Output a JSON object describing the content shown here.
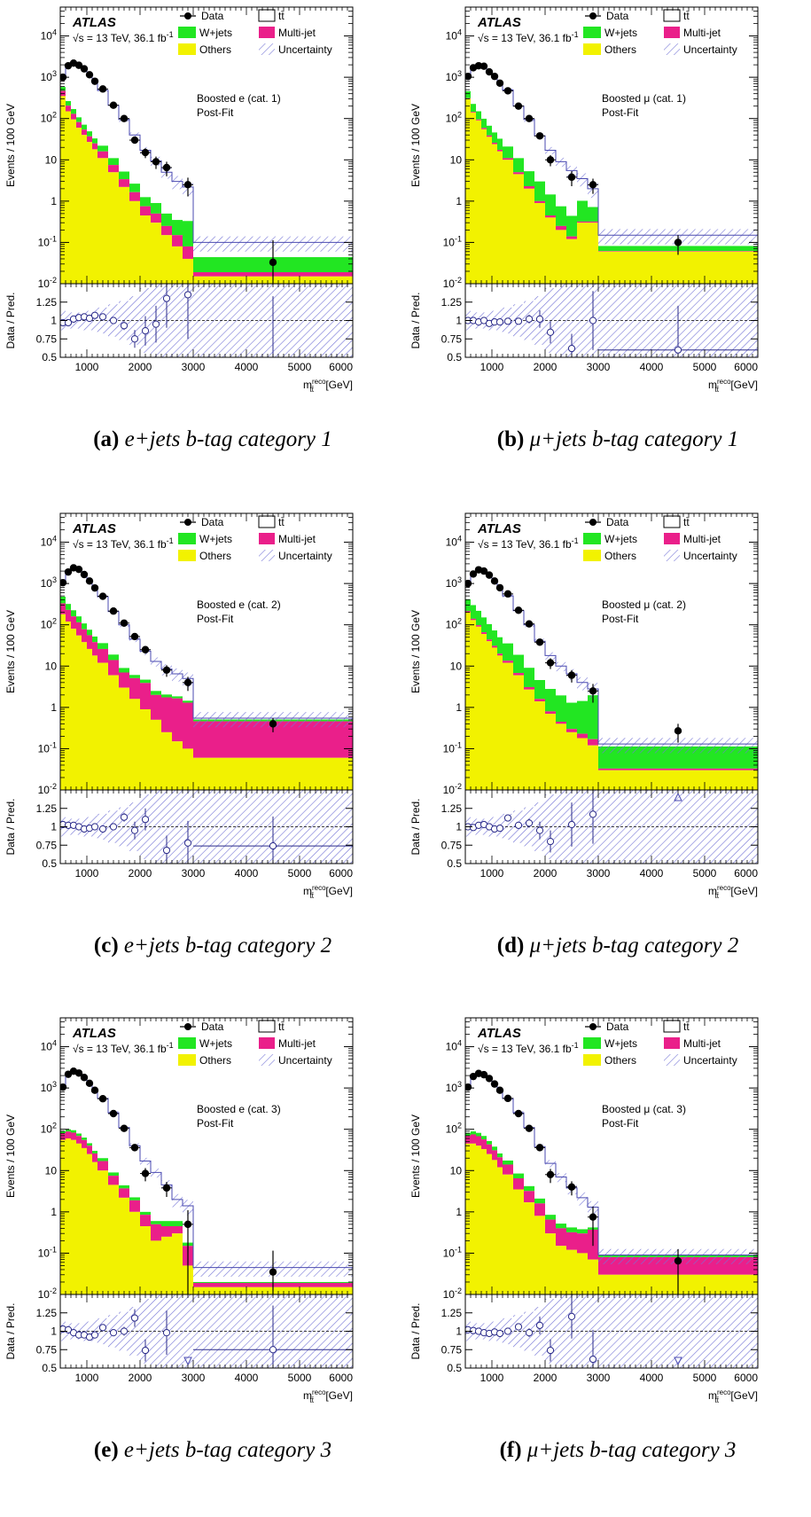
{
  "colors": {
    "wjets": "#22e622",
    "multijet": "#ea1f8a",
    "others": "#f2f200",
    "ttbar": "#ffffff",
    "data": "#000000",
    "uncertainty": "#6e6ed2"
  },
  "legend": {
    "data": "Data",
    "ttbar": "tt̄",
    "wjets": "W+jets",
    "multijet": "Multi-jet",
    "others": "Others",
    "uncertainty": "Uncertainty"
  },
  "atlas_label": "ATLAS",
  "energy_label": "√s = 13 TeV, 36.1 fb",
  "energy_sup": "-1",
  "postfit_label": "Post-Fit",
  "y_axis_label": "Events / 100 GeV",
  "ratio_axis_label": "Data / Pred.",
  "x_axis_label": "m",
  "x_axis_sup": "reco",
  "x_axis_sub": "tt̄",
  "x_axis_unit": "[GeV]",
  "chart_data": [
    {
      "type": "bar",
      "caption_letter": "(a)",
      "caption_text": "e+jets b-tag category 1",
      "region_label": "Boosted e (cat. 1)",
      "xlim": [
        500,
        6000
      ],
      "ylim": [
        0.01,
        50000
      ],
      "yscale": "log",
      "ratio_ylim": [
        0.5,
        1.5
      ],
      "ratio_ticks": [
        0.5,
        0.75,
        1,
        1.25
      ],
      "x_ticks": [
        1000,
        2000,
        3000,
        4000,
        5000,
        6000
      ],
      "bin_edges": [
        500,
        600,
        700,
        800,
        900,
        1000,
        1100,
        1200,
        1400,
        1600,
        1800,
        2000,
        2200,
        2400,
        2600,
        2800,
        3000,
        6000
      ],
      "others": [
        350,
        150,
        95,
        60,
        40,
        27,
        18,
        11,
        5,
        2.2,
        1.0,
        0.45,
        0.3,
        0.15,
        0.08,
        0.04,
        0.015
      ],
      "multijet": [
        120,
        55,
        35,
        22,
        14,
        10,
        7,
        5,
        2.5,
        1.2,
        0.65,
        0.3,
        0.2,
        0.1,
        0.07,
        0.04,
        0.004
      ],
      "wjets": [
        110,
        60,
        40,
        25,
        17,
        12,
        8,
        6,
        3.5,
        1.8,
        1.0,
        0.5,
        0.4,
        0.25,
        0.2,
        0.25,
        0.025
      ],
      "total": [
        1000,
        1850,
        2100,
        1850,
        1500,
        1100,
        750,
        480,
        210,
        95,
        40,
        17,
        9.5,
        5.0,
        3.0,
        2.2,
        0.1
      ],
      "unc_frac": [
        0.06,
        0.05,
        0.05,
        0.05,
        0.06,
        0.06,
        0.07,
        0.08,
        0.1,
        0.12,
        0.15,
        0.2,
        0.25,
        0.3,
        0.35,
        0.4,
        0.4
      ],
      "data": [
        1000,
        1900,
        2200,
        1950,
        1600,
        1150,
        800,
        520,
        210,
        100,
        30,
        15,
        9,
        6.5,
        0,
        2.5,
        0.033
      ],
      "data_err": [
        0,
        0,
        0,
        0,
        0,
        0,
        0,
        0,
        0,
        0,
        5,
        4,
        3,
        2.5,
        0,
        1.2,
        0.08
      ],
      "ratio": [
        0.97,
        0.97,
        1.02,
        1.04,
        1.05,
        1.03,
        1.07,
        1.05,
        1.0,
        0.93,
        0.75,
        0.86,
        0.95,
        1.3,
        null,
        1.35,
        0.33
      ],
      "ratio_err": [
        0.01,
        0.01,
        0.01,
        0.01,
        0.02,
        0.02,
        0.03,
        0.04,
        0.04,
        0.06,
        0.12,
        0.2,
        0.25,
        0.4,
        null,
        0.6,
        1.0
      ]
    },
    {
      "type": "bar",
      "caption_letter": "(b)",
      "caption_text": "μ+jets b-tag category 1",
      "region_label": "Boosted μ (cat. 1)",
      "xlim": [
        500,
        6000
      ],
      "ylim": [
        0.01,
        50000
      ],
      "yscale": "log",
      "ratio_ylim": [
        0.5,
        1.5
      ],
      "ratio_ticks": [
        0.5,
        0.75,
        1,
        1.25
      ],
      "x_ticks": [
        1000,
        2000,
        3000,
        4000,
        5000,
        6000
      ],
      "bin_edges": [
        500,
        600,
        700,
        800,
        900,
        1000,
        1100,
        1200,
        1400,
        1600,
        1800,
        2000,
        2200,
        2400,
        2600,
        2800,
        3000,
        6000
      ],
      "others": [
        300,
        140,
        90,
        55,
        36,
        24,
        16,
        10,
        4.5,
        2.0,
        0.9,
        0.4,
        0.2,
        0.12,
        0.3,
        0.3,
        0.06
      ],
      "multijet": [
        10,
        6,
        5,
        4,
        3,
        2,
        1.5,
        1,
        0.5,
        0.3,
        0.1,
        0.05,
        0.05,
        0.02,
        0.02,
        0.02,
        0.002
      ],
      "wjets": [
        150,
        80,
        55,
        40,
        28,
        20,
        15,
        10,
        6,
        3,
        2,
        1,
        0.5,
        0.3,
        0.7,
        0.4,
        0.02
      ],
      "total": [
        1100,
        1750,
        1950,
        1800,
        1400,
        1100,
        750,
        490,
        200,
        95,
        38,
        17,
        9,
        5.5,
        3.5,
        2.0,
        0.15
      ],
      "unc_frac": [
        0.06,
        0.05,
        0.05,
        0.05,
        0.06,
        0.06,
        0.07,
        0.08,
        0.1,
        0.12,
        0.15,
        0.2,
        0.25,
        0.3,
        0.35,
        0.4,
        0.4
      ],
      "data": [
        1050,
        1700,
        1900,
        1850,
        1350,
        1050,
        720,
        470,
        200,
        100,
        38,
        10,
        0,
        3.8,
        0,
        2.5,
        0.1
      ],
      "data_err": [
        0,
        0,
        0,
        0,
        0,
        0,
        0,
        0,
        0,
        0,
        6,
        3,
        0,
        1.5,
        0,
        1.0,
        0.05
      ],
      "ratio": [
        1.0,
        1.0,
        0.98,
        1.0,
        0.96,
        0.98,
        0.98,
        0.99,
        0.99,
        1.02,
        1.02,
        0.84,
        null,
        0.62,
        null,
        1.0,
        0.6
      ],
      "ratio_err": [
        0.01,
        0.01,
        0.01,
        0.01,
        0.02,
        0.02,
        0.03,
        0.04,
        0.04,
        0.06,
        0.12,
        0.15,
        null,
        0.2,
        null,
        0.4,
        0.6
      ]
    },
    {
      "type": "bar",
      "caption_letter": "(c)",
      "caption_text": "e+jets b-tag category 2",
      "region_label": "Boosted e (cat. 2)",
      "xlim": [
        500,
        6000
      ],
      "ylim": [
        0.01,
        50000
      ],
      "yscale": "log",
      "ratio_ylim": [
        0.5,
        1.5
      ],
      "ratio_ticks": [
        0.5,
        0.75,
        1,
        1.25
      ],
      "x_ticks": [
        1000,
        2000,
        3000,
        4000,
        5000,
        6000
      ],
      "bin_edges": [
        500,
        600,
        700,
        800,
        900,
        1000,
        1100,
        1200,
        1400,
        1600,
        1800,
        2000,
        2200,
        2400,
        2600,
        2800,
        3000,
        6000
      ],
      "others": [
        180,
        120,
        80,
        55,
        38,
        26,
        18,
        12,
        6,
        3.0,
        1.6,
        0.9,
        0.5,
        0.25,
        0.15,
        0.1,
        0.06
      ],
      "multijet": [
        150,
        110,
        80,
        60,
        40,
        30,
        20,
        14,
        8,
        4,
        3.5,
        3,
        1.5,
        1.5,
        1.5,
        1.2,
        0.4
      ],
      "wjets": [
        150,
        90,
        65,
        45,
        30,
        20,
        14,
        10,
        5,
        2,
        1,
        0.8,
        0.5,
        0.3,
        0.2,
        0.15,
        0.05
      ],
      "total": [
        1000,
        1850,
        2300,
        2200,
        1700,
        1200,
        800,
        480,
        210,
        100,
        45,
        23,
        13,
        8.5,
        6.5,
        5.0,
        0.55
      ],
      "unc_frac": [
        0.06,
        0.05,
        0.05,
        0.05,
        0.06,
        0.06,
        0.07,
        0.08,
        0.1,
        0.12,
        0.15,
        0.2,
        0.25,
        0.3,
        0.35,
        0.4,
        0.4
      ],
      "data": [
        1050,
        1900,
        2400,
        2200,
        1650,
        1150,
        780,
        490,
        215,
        110,
        52,
        25,
        0,
        8,
        0,
        4,
        0.4
      ],
      "data_err": [
        0,
        0,
        0,
        0,
        0,
        0,
        0,
        0,
        0,
        0,
        7,
        5,
        0,
        2.5,
        0,
        1.5,
        0.15
      ],
      "ratio": [
        1.03,
        1.02,
        1.02,
        1.0,
        0.97,
        0.98,
        1.0,
        0.97,
        1.0,
        1.13,
        0.95,
        1.1,
        null,
        0.68,
        null,
        0.78,
        0.74
      ],
      "ratio_err": [
        0.01,
        0.01,
        0.01,
        0.01,
        0.02,
        0.02,
        0.03,
        0.04,
        0.04,
        0.06,
        0.12,
        0.15,
        null,
        0.2,
        null,
        0.3,
        0.4
      ]
    },
    {
      "type": "bar",
      "caption_letter": "(d)",
      "caption_text": "μ+jets b-tag category 2",
      "region_label": "Boosted μ (cat. 2)",
      "xlim": [
        500,
        6000
      ],
      "ylim": [
        0.01,
        50000
      ],
      "yscale": "log",
      "ratio_ylim": [
        0.5,
        1.5
      ],
      "ratio_ticks": [
        0.5,
        0.75,
        1,
        1.25
      ],
      "x_ticks": [
        1000,
        2000,
        3000,
        4000,
        5000,
        6000
      ],
      "bin_edges": [
        500,
        600,
        700,
        800,
        900,
        1000,
        1100,
        1200,
        1400,
        1600,
        1800,
        2000,
        2200,
        2400,
        2600,
        2800,
        3000,
        6000
      ],
      "others": [
        200,
        130,
        90,
        60,
        40,
        28,
        18,
        12,
        6,
        2.7,
        1.4,
        0.7,
        0.4,
        0.25,
        0.18,
        0.12,
        0.03
      ],
      "multijet": [
        15,
        10,
        8,
        6,
        4,
        3,
        2,
        1.5,
        0.8,
        0.4,
        0.2,
        0.1,
        0.05,
        0.05,
        0.05,
        0.05,
        0.003
      ],
      "wjets": [
        200,
        160,
        120,
        85,
        60,
        42,
        30,
        22,
        12,
        6,
        3,
        2,
        1.5,
        1,
        1.2,
        1.8,
        0.08
      ],
      "total": [
        1000,
        1700,
        2100,
        1950,
        1600,
        1200,
        800,
        500,
        220,
        100,
        40,
        18,
        10,
        6.5,
        4.0,
        2.8,
        0.13
      ],
      "unc_frac": [
        0.06,
        0.05,
        0.05,
        0.05,
        0.06,
        0.06,
        0.07,
        0.08,
        0.1,
        0.12,
        0.15,
        0.2,
        0.25,
        0.3,
        0.35,
        0.4,
        0.4
      ],
      "data": [
        1000,
        1700,
        2150,
        2000,
        1600,
        1150,
        790,
        560,
        225,
        105,
        38,
        12,
        0,
        6,
        0,
        2.5,
        0.27
      ],
      "data_err": [
        0,
        0,
        0,
        0,
        0,
        0,
        0,
        0,
        0,
        0,
        6,
        3.5,
        0,
        2,
        0,
        1.2,
        0.13
      ],
      "ratio": [
        1.0,
        0.99,
        1.02,
        1.03,
        1.0,
        0.97,
        0.98,
        1.12,
        1.02,
        1.05,
        0.95,
        0.8,
        null,
        1.03,
        null,
        1.17,
        1.5
      ],
      "ratio_err": [
        0.01,
        0.01,
        0.01,
        0.01,
        0.02,
        0.02,
        0.03,
        0.04,
        0.04,
        0.06,
        0.12,
        0.15,
        null,
        0.3,
        null,
        0.4,
        0.0
      ]
    },
    {
      "type": "bar",
      "caption_letter": "(e)",
      "caption_text": "e+jets b-tag category 3",
      "region_label": "Boosted e (cat. 3)",
      "xlim": [
        500,
        6000
      ],
      "ylim": [
        0.01,
        50000
      ],
      "yscale": "log",
      "ratio_ylim": [
        0.5,
        1.5
      ],
      "ratio_ticks": [
        0.5,
        0.75,
        1,
        1.25
      ],
      "x_ticks": [
        1000,
        2000,
        3000,
        4000,
        5000,
        6000
      ],
      "bin_edges": [
        500,
        600,
        700,
        800,
        900,
        1000,
        1100,
        1200,
        1400,
        1600,
        1800,
        2000,
        2200,
        2400,
        2600,
        2800,
        3000,
        6000
      ],
      "others": [
        55,
        60,
        55,
        45,
        35,
        25,
        16,
        10,
        4.5,
        2.2,
        1.0,
        0.45,
        0.2,
        0.25,
        0.3,
        0.05,
        0.015
      ],
      "multijet": [
        25,
        28,
        28,
        24,
        20,
        15,
        10,
        7,
        3,
        1.5,
        0.9,
        0.4,
        0.3,
        0.2,
        0.15,
        0.1,
        0.004
      ],
      "wjets": [
        10,
        12,
        12,
        10,
        8,
        6,
        4,
        3,
        1.5,
        0.7,
        0.35,
        0.15,
        0.1,
        0.15,
        0.15,
        0.03,
        0.001
      ],
      "total": [
        1000,
        2100,
        2600,
        2400,
        1900,
        1400,
        950,
        560,
        250,
        110,
        40,
        17,
        9,
        4.5,
        2.0,
        1.4,
        0.045
      ],
      "unc_frac": [
        0.06,
        0.05,
        0.05,
        0.05,
        0.06,
        0.06,
        0.07,
        0.08,
        0.1,
        0.12,
        0.15,
        0.2,
        0.25,
        0.3,
        0.35,
        0.4,
        0.4
      ],
      "data": [
        1050,
        2150,
        2550,
        2300,
        1800,
        1300,
        880,
        550,
        240,
        105,
        36,
        8.5,
        0,
        3.8,
        0,
        0.5,
        0.035
      ],
      "data_err": [
        0,
        0,
        0,
        0,
        0,
        0,
        0,
        0,
        0,
        0,
        6,
        3,
        0,
        1.5,
        0,
        0.6,
        0.08
      ],
      "ratio": [
        1.03,
        1.02,
        0.98,
        0.95,
        0.95,
        0.92,
        0.95,
        1.05,
        0.98,
        1.0,
        1.18,
        0.74,
        null,
        0.98,
        null,
        0.5,
        0.75
      ],
      "ratio_err": [
        0.01,
        0.01,
        0.01,
        0.01,
        0.02,
        0.02,
        0.03,
        0.04,
        0.04,
        0.06,
        0.12,
        0.15,
        null,
        0.3,
        null,
        0.0,
        0.6
      ]
    },
    {
      "type": "bar",
      "caption_letter": "(f)",
      "caption_text": "μ+jets b-tag category 3",
      "region_label": "Boosted μ (cat. 3)",
      "xlim": [
        500,
        6000
      ],
      "ylim": [
        0.01,
        50000
      ],
      "yscale": "log",
      "ratio_ylim": [
        0.5,
        1.5
      ],
      "ratio_ticks": [
        0.5,
        0.75,
        1,
        1.25
      ],
      "x_ticks": [
        1000,
        2000,
        3000,
        4000,
        5000,
        6000
      ],
      "bin_edges": [
        500,
        600,
        700,
        800,
        900,
        1000,
        1100,
        1200,
        1400,
        1600,
        1800,
        2000,
        2200,
        2400,
        2600,
        2800,
        3000,
        6000
      ],
      "others": [
        45,
        45,
        40,
        33,
        25,
        18,
        12,
        8,
        3.5,
        1.7,
        0.8,
        0.3,
        0.15,
        0.12,
        0.1,
        0.07,
        0.03
      ],
      "multijet": [
        25,
        30,
        28,
        24,
        18,
        13,
        9,
        6,
        3,
        1.5,
        0.8,
        0.35,
        0.25,
        0.2,
        0.2,
        0.3,
        0.05
      ],
      "wjets": [
        12,
        14,
        14,
        12,
        9,
        7,
        5,
        3.5,
        2,
        1,
        0.5,
        0.2,
        0.12,
        0.1,
        0.08,
        0.05,
        0.01
      ],
      "total": [
        1050,
        1900,
        2250,
        2150,
        1750,
        1300,
        900,
        560,
        250,
        110,
        38,
        15,
        7,
        3.8,
        2.2,
        1.3,
        0.09
      ],
      "unc_frac": [
        0.06,
        0.05,
        0.05,
        0.05,
        0.06,
        0.06,
        0.07,
        0.08,
        0.1,
        0.12,
        0.15,
        0.2,
        0.25,
        0.3,
        0.35,
        0.4,
        0.4
      ],
      "data": [
        1050,
        1900,
        2250,
        2100,
        1700,
        1250,
        880,
        560,
        240,
        105,
        36,
        8,
        0,
        4,
        0,
        0.75,
        0.065
      ],
      "data_err": [
        0,
        0,
        0,
        0,
        0,
        0,
        0,
        0,
        0,
        0,
        6,
        3,
        0,
        1.5,
        0,
        0.6,
        0.06
      ],
      "ratio": [
        1.02,
        1.01,
        1.0,
        0.98,
        0.97,
        0.99,
        0.97,
        1.0,
        1.06,
        0.98,
        1.08,
        0.74,
        null,
        1.2,
        null,
        0.62,
        0.5
      ],
      "ratio_err": [
        0.01,
        0.01,
        0.01,
        0.01,
        0.02,
        0.02,
        0.03,
        0.04,
        0.04,
        0.06,
        0.12,
        0.15,
        null,
        0.3,
        null,
        0.4,
        0.0
      ]
    }
  ]
}
